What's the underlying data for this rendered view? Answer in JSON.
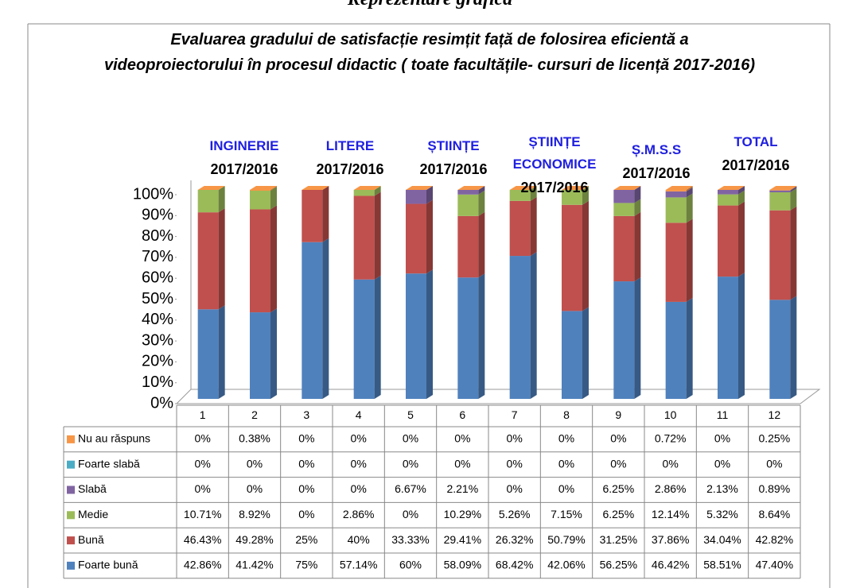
{
  "heading": "Reprezentare grafică",
  "chart_data": {
    "type": "bar3d-stacked",
    "title": "Evaluarea gradului de satisfacție resimțit față de folosirea eficientă a videoproiectorului în procesul didactic ( toate facultățile- cursuri de licență 2017-2016)",
    "groups": [
      {
        "name": "INGINERIE",
        "period": "2017/2016"
      },
      {
        "name": "LITERE",
        "period": "2017/2016"
      },
      {
        "name": "ȘTIINȚE",
        "period": "2017/2016"
      },
      {
        "name": "ȘTIINȚE ECONOMICE",
        "period": "2017/2016"
      },
      {
        "name": "Ș.M.S.S",
        "period": "2017/2016"
      },
      {
        "name": "TOTAL",
        "period": "2017/2016"
      }
    ],
    "categories": [
      "1",
      "2",
      "3",
      "4",
      "5",
      "6",
      "7",
      "8",
      "9",
      "10",
      "11",
      "12"
    ],
    "ylim": [
      0,
      100
    ],
    "yticks": [
      {
        "value": 0,
        "label": "0%"
      },
      {
        "value": 10,
        "label": "10%"
      },
      {
        "value": 20,
        "label": "20%"
      },
      {
        "value": 30,
        "label": "30%"
      },
      {
        "value": 40,
        "label": "40%"
      },
      {
        "value": 50,
        "label": "50%"
      },
      {
        "value": 60,
        "label": "60%"
      },
      {
        "value": 70,
        "label": "70%"
      },
      {
        "value": 80,
        "label": "80%"
      },
      {
        "value": 90,
        "label": "90%"
      },
      {
        "value": 100,
        "label": "100%"
      }
    ],
    "series": [
      {
        "name": "Foarte bună",
        "color": "#4f81bd",
        "values": [
          42.86,
          41.42,
          75,
          57.14,
          60,
          58.09,
          68.42,
          42.06,
          56.25,
          46.42,
          58.51,
          47.4
        ],
        "value_labels": [
          "42.86%",
          "41.42%",
          "75%",
          "57.14%",
          "60%",
          "58.09%",
          "68.42%",
          "42.06%",
          "56.25%",
          "46.42%",
          "58.51%",
          "47.40%"
        ]
      },
      {
        "name": "Bună",
        "color": "#c0504d",
        "values": [
          46.43,
          49.28,
          25,
          40,
          33.33,
          29.41,
          26.32,
          50.79,
          31.25,
          37.86,
          34.04,
          42.82
        ],
        "value_labels": [
          "46.43%",
          "49.28%",
          "25%",
          "40%",
          "33.33%",
          "29.41%",
          "26.32%",
          "50.79%",
          "31.25%",
          "37.86%",
          "34.04%",
          "42.82%"
        ]
      },
      {
        "name": "Medie",
        "color": "#9bbb59",
        "values": [
          10.71,
          8.92,
          0,
          2.86,
          0,
          10.29,
          5.26,
          7.15,
          6.25,
          12.14,
          5.32,
          8.64
        ],
        "value_labels": [
          "10.71%",
          "8.92%",
          "0%",
          "2.86%",
          "0%",
          "10.29%",
          "5.26%",
          "7.15%",
          "6.25%",
          "12.14%",
          "5.32%",
          "8.64%"
        ]
      },
      {
        "name": "Slabă",
        "color": "#8064a2",
        "values": [
          0,
          0,
          0,
          0,
          6.67,
          2.21,
          0,
          0,
          6.25,
          2.86,
          2.13,
          0.89
        ],
        "value_labels": [
          "0%",
          "0%",
          "0%",
          "0%",
          "6.67%",
          "2.21%",
          "0%",
          "0%",
          "6.25%",
          "2.86%",
          "2.13%",
          "0.89%"
        ]
      },
      {
        "name": "Foarte slabă",
        "color": "#4bacc6",
        "values": [
          0,
          0,
          0,
          0,
          0,
          0,
          0,
          0,
          0,
          0,
          0,
          0
        ],
        "value_labels": [
          "0%",
          "0%",
          "0%",
          "0%",
          "0%",
          "0%",
          "0%",
          "0%",
          "0%",
          "0%",
          "0%",
          "0%"
        ]
      },
      {
        "name": "Nu au răspuns",
        "color": "#f79646",
        "values": [
          0,
          0.38,
          0,
          0,
          0,
          0,
          0,
          0,
          0,
          0.72,
          0,
          0.25
        ],
        "value_labels": [
          "0%",
          "0.38%",
          "0%",
          "0%",
          "0%",
          "0%",
          "0%",
          "0%",
          "0%",
          "0.72%",
          "0%",
          "0.25%"
        ]
      }
    ]
  }
}
